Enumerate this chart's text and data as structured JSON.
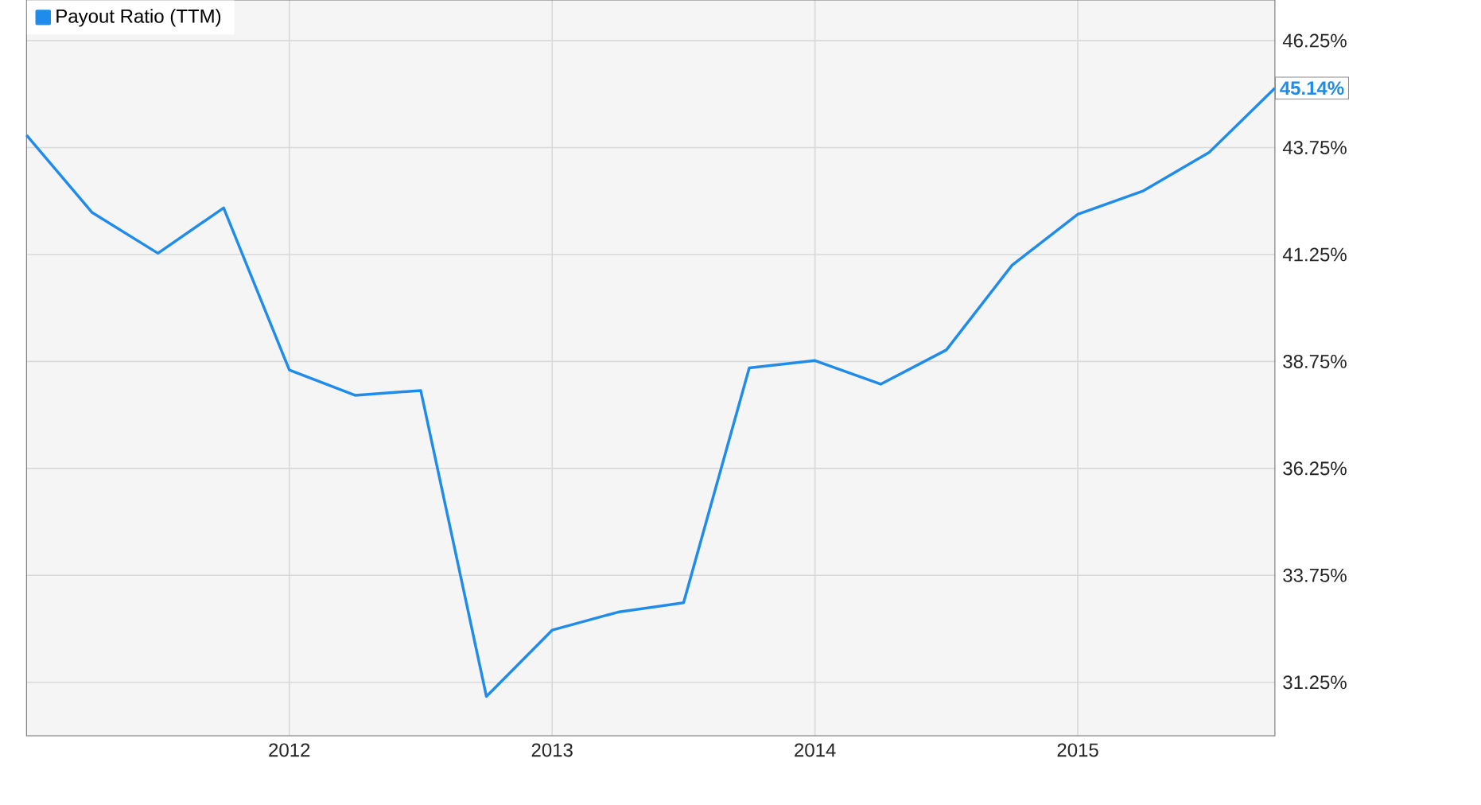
{
  "chart_data": {
    "type": "line",
    "x": [
      "2011-01",
      "2011-04",
      "2011-07",
      "2011-10",
      "2012-01",
      "2012-04",
      "2012-07",
      "2012-10",
      "2013-01",
      "2013-04",
      "2013-07",
      "2013-10",
      "2014-01",
      "2014-04",
      "2014-07",
      "2014-10",
      "2015-01",
      "2015-04",
      "2015-07",
      "2015-10"
    ],
    "series": [
      {
        "name": "Payout Ratio (TTM)",
        "color": "#1f8ceb",
        "values": [
          44.04,
          42.23,
          41.28,
          42.34,
          38.55,
          37.96,
          38.07,
          30.92,
          32.47,
          32.89,
          33.11,
          38.6,
          38.77,
          38.22,
          39.02,
          41.0,
          42.19,
          42.74,
          43.64,
          45.14
        ],
        "value_labels": [
          null,
          null,
          null,
          null,
          null,
          null,
          null,
          null,
          null,
          null,
          null,
          null,
          null,
          null,
          null,
          null,
          null,
          null,
          null,
          "45.14%"
        ]
      }
    ],
    "xlim": [
      "2011-01",
      "2015-10"
    ],
    "ylim": [
      30,
      47.2
    ],
    "xticks": [
      "2012",
      "2013",
      "2014",
      "2015"
    ],
    "yticks": [
      {
        "value": 31.25,
        "label": "31.25%"
      },
      {
        "value": 33.75,
        "label": "33.75%"
      },
      {
        "value": 36.25,
        "label": "36.25%"
      },
      {
        "value": 38.75,
        "label": "38.75%"
      },
      {
        "value": 41.25,
        "label": "41.25%"
      },
      {
        "value": 43.75,
        "label": "43.75%"
      },
      {
        "value": 46.25,
        "label": "46.25%"
      }
    ],
    "grid": true,
    "legend": "top left",
    "marker": "none",
    "line_style": "solid"
  }
}
